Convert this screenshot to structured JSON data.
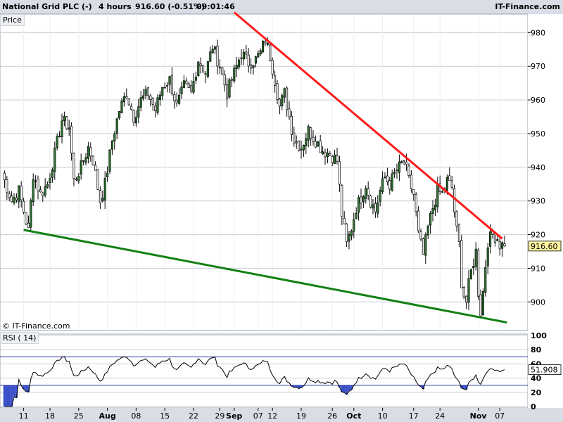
{
  "header": {
    "instrument": "National Grid PLC (-)",
    "timeframe": "4 hours",
    "last": "916.60 (-0.51%)",
    "time": "09:01:46",
    "brand": "IT-Finance.com"
  },
  "price_panel": {
    "label": "Price",
    "copyright": "© IT-Finance.com",
    "last_tag": "916.60"
  },
  "rsi_panel": {
    "label": "RSI ( 14)",
    "value_tag": "51.908"
  },
  "colors": {
    "up_fill": "#2e7d32",
    "down_fill": "#ffffff",
    "candle_outline": "#000000",
    "resistance": "#ff1a1a",
    "support": "#148014",
    "rsi_line": "#000000",
    "rsi_overbought_fill": "#1a8f1a",
    "rsi_oversold_fill": "#3a50c8",
    "grid": "#c8ccd4",
    "tag_bg": "#fff3a0"
  },
  "chart_data": [
    {
      "type": "candlestick",
      "title": "National Grid PLC (-) 4 hours",
      "ylabel": "Price",
      "ylim": [
        891.5,
        985.5
      ],
      "yticks": [
        900,
        910,
        920,
        930,
        940,
        950,
        960,
        970,
        980
      ],
      "xticks": [
        "11",
        "18",
        "25",
        "Aug",
        "08",
        "15",
        "22",
        "29",
        "Sep",
        "07",
        "12",
        "19",
        "26",
        "Oct",
        "10",
        "17",
        "24",
        "Nov",
        "07"
      ],
      "grid": true,
      "close_anchors": [
        [
          0,
          938
        ],
        [
          4,
          930
        ],
        [
          7,
          933
        ],
        [
          9,
          927
        ],
        [
          11,
          921
        ],
        [
          13,
          938
        ],
        [
          16,
          932
        ],
        [
          19,
          935
        ],
        [
          22,
          944
        ],
        [
          25,
          954
        ],
        [
          28,
          952
        ],
        [
          30,
          936
        ],
        [
          33,
          940
        ],
        [
          36,
          946
        ],
        [
          38,
          942
        ],
        [
          41,
          930
        ],
        [
          43,
          935
        ],
        [
          46,
          948
        ],
        [
          49,
          957
        ],
        [
          52,
          962
        ],
        [
          55,
          955
        ],
        [
          58,
          960
        ],
        [
          61,
          962
        ],
        [
          64,
          957
        ],
        [
          67,
          964
        ],
        [
          70,
          966
        ],
        [
          73,
          958
        ],
        [
          76,
          964
        ],
        [
          79,
          962
        ],
        [
          82,
          972
        ],
        [
          85,
          968
        ],
        [
          88,
          976
        ],
        [
          91,
          970
        ],
        [
          94,
          962
        ],
        [
          97,
          968
        ],
        [
          100,
          974
        ],
        [
          103,
          971
        ],
        [
          106,
          972
        ],
        [
          108,
          974
        ],
        [
          110,
          978
        ],
        [
          112,
          973
        ],
        [
          114,
          966
        ],
        [
          116,
          958
        ],
        [
          118,
          962
        ],
        [
          120,
          955
        ],
        [
          122,
          948
        ],
        [
          125,
          946
        ],
        [
          128,
          951
        ],
        [
          131,
          948
        ],
        [
          134,
          945
        ],
        [
          137,
          944
        ],
        [
          140,
          942
        ],
        [
          142,
          926
        ],
        [
          144,
          917
        ],
        [
          146,
          922
        ],
        [
          148,
          928
        ],
        [
          150,
          931
        ],
        [
          152,
          935
        ],
        [
          154,
          930
        ],
        [
          156,
          927
        ],
        [
          158,
          933
        ],
        [
          160,
          937
        ],
        [
          162,
          935
        ],
        [
          164,
          938
        ],
        [
          166,
          940
        ],
        [
          168,
          942
        ],
        [
          170,
          936
        ],
        [
          172,
          932
        ],
        [
          174,
          920
        ],
        [
          176,
          914
        ],
        [
          178,
          922
        ],
        [
          180,
          928
        ],
        [
          182,
          933
        ],
        [
          184,
          932
        ],
        [
          186,
          936
        ],
        [
          188,
          934
        ],
        [
          189,
          927
        ],
        [
          190,
          921
        ],
        [
          191,
          917
        ],
        [
          192,
          906
        ],
        [
          193,
          902
        ],
        [
          194,
          900
        ],
        [
          195,
          905
        ],
        [
          196,
          909
        ],
        [
          198,
          915
        ],
        [
          199,
          903
        ],
        [
          200,
          897
        ],
        [
          201,
          903
        ],
        [
          202,
          911
        ],
        [
          203,
          918
        ],
        [
          205,
          920
        ],
        [
          207,
          919
        ],
        [
          208,
          917
        ]
      ],
      "series": [
        {
          "name": "Resistance",
          "points": [
            [
              97,
              986
            ],
            [
              209,
              918.8
            ]
          ]
        },
        {
          "name": "Support",
          "points": [
            [
              9,
              921.4
            ],
            [
              211,
              893.9
            ]
          ]
        }
      ],
      "last_value": 916.6
    },
    {
      "type": "line",
      "title": "RSI ( 14)",
      "ylim": [
        -2,
        102
      ],
      "yticks": [
        0,
        20,
        40,
        60,
        80,
        100
      ],
      "reference_lines": [
        30,
        70
      ],
      "source": "RSI(14) of close",
      "last_value": 51.908
    }
  ]
}
